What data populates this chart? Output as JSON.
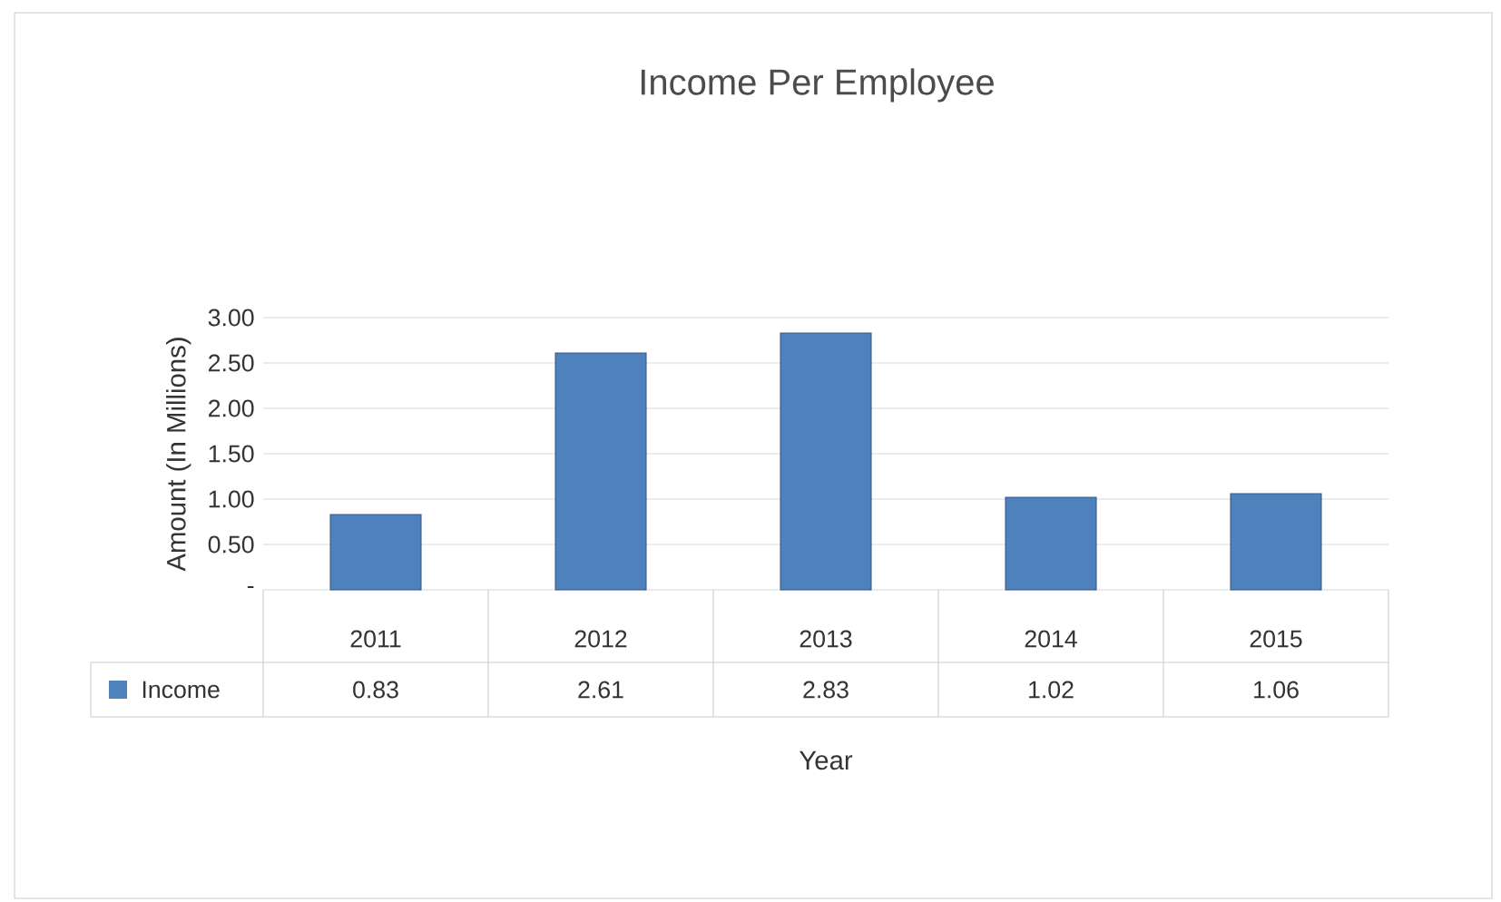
{
  "chart_data": {
    "type": "bar",
    "title": "Income Per Employee",
    "xlabel": "Year",
    "ylabel": "Amount (In Millions)",
    "categories": [
      "2011",
      "2012",
      "2013",
      "2014",
      "2015"
    ],
    "series": [
      {
        "name": "Income",
        "color": "#4f81bd",
        "values": [
          0.83,
          2.61,
          2.83,
          1.02,
          1.06
        ]
      }
    ],
    "ylim": [
      0,
      3
    ],
    "yticks": [
      {
        "value": 0,
        "label": "-"
      },
      {
        "value": 0.5,
        "label": "0.50"
      },
      {
        "value": 1,
        "label": "1.00"
      },
      {
        "value": 1.5,
        "label": "1.50"
      },
      {
        "value": 2,
        "label": "2.00"
      },
      {
        "value": 2.5,
        "label": "2.50"
      },
      {
        "value": 3,
        "label": "3.00"
      }
    ],
    "grid": "y",
    "legend": "bottom",
    "data_labels": true
  }
}
